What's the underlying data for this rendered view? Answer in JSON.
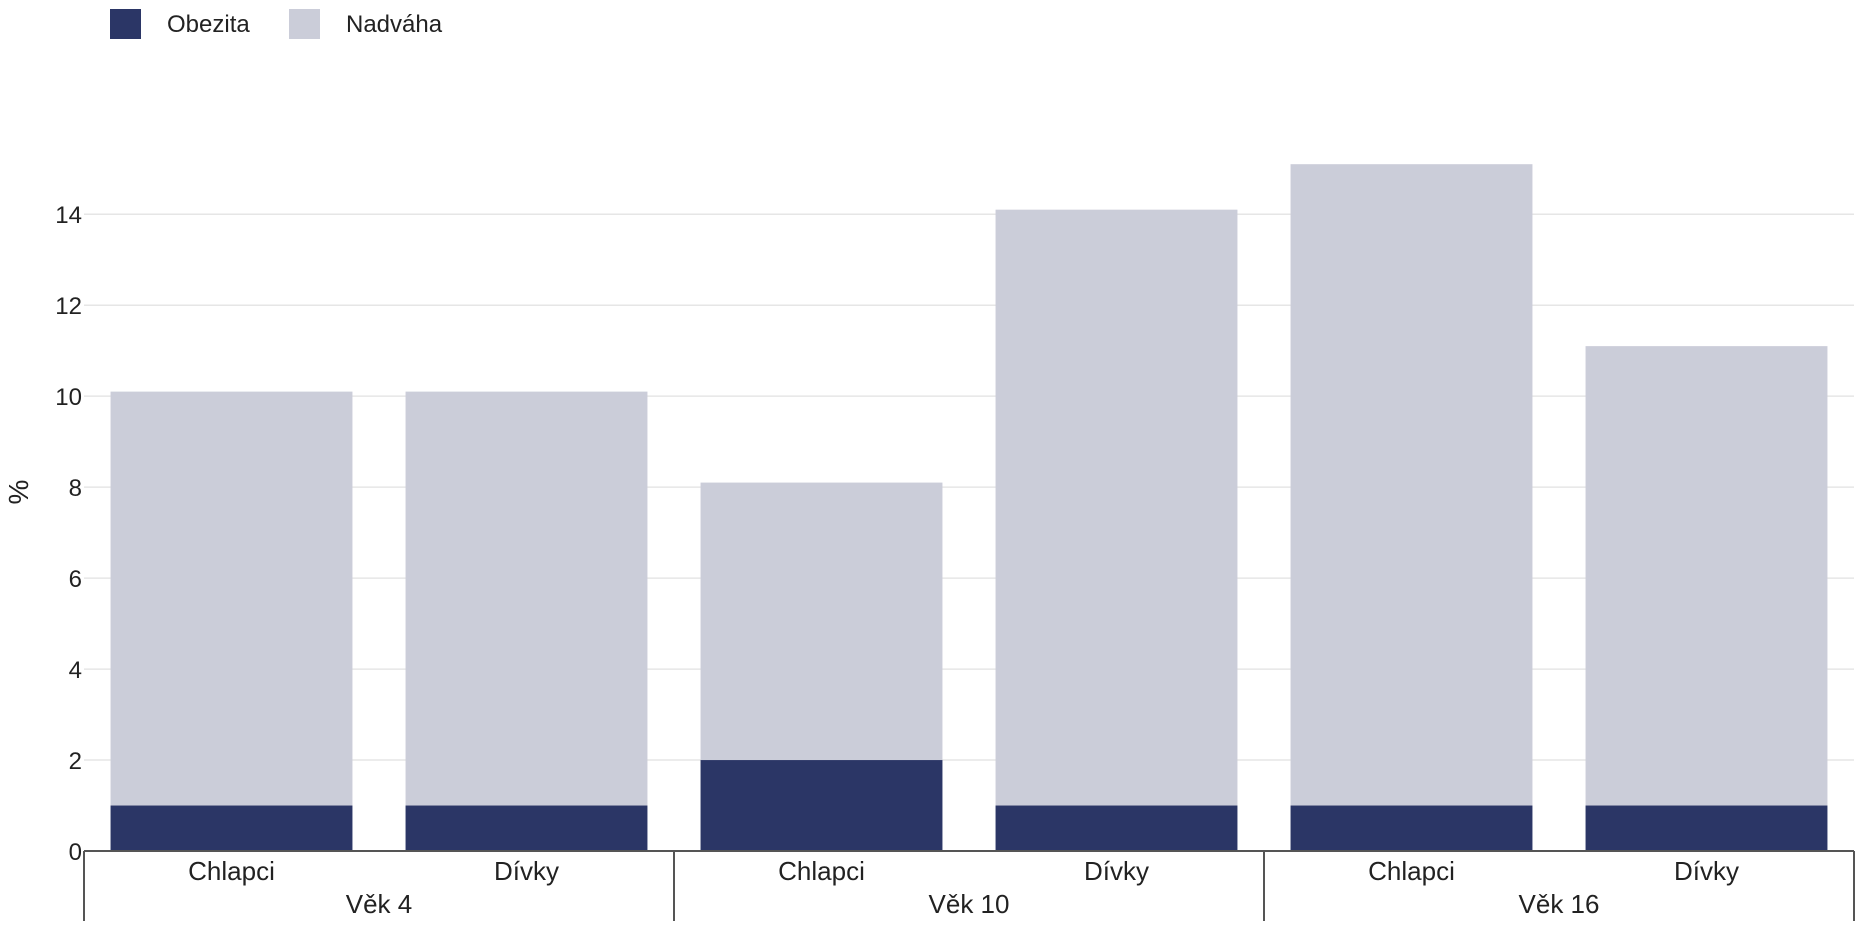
{
  "chart_data": {
    "type": "bar",
    "stacked": true,
    "ylabel": "%",
    "ylim": [
      0,
      15.5
    ],
    "y_ticks": [
      "0",
      "2",
      "4",
      "6",
      "8",
      "10",
      "12",
      "14"
    ],
    "grid": true,
    "legend_position": "top-left",
    "categories": [
      "Chlapci",
      "Dívky",
      "Chlapci",
      "Dívky",
      "Chlapci",
      "Dívky"
    ],
    "groups": [
      {
        "label": "Věk 4",
        "categories": [
          "Chlapci",
          "Dívky"
        ]
      },
      {
        "label": "Věk 10",
        "categories": [
          "Chlapci",
          "Dívky"
        ]
      },
      {
        "label": "Věk 16",
        "categories": [
          "Chlapci",
          "Dívky"
        ]
      }
    ],
    "series": [
      {
        "name": "Obezita",
        "color": "#2b3666",
        "values": [
          1,
          1,
          2,
          1,
          1,
          1
        ]
      },
      {
        "name": "Nadváha",
        "color": "#cbcdd9",
        "values": [
          9.1,
          9.1,
          6.1,
          13.1,
          14.1,
          10.1
        ]
      }
    ]
  }
}
